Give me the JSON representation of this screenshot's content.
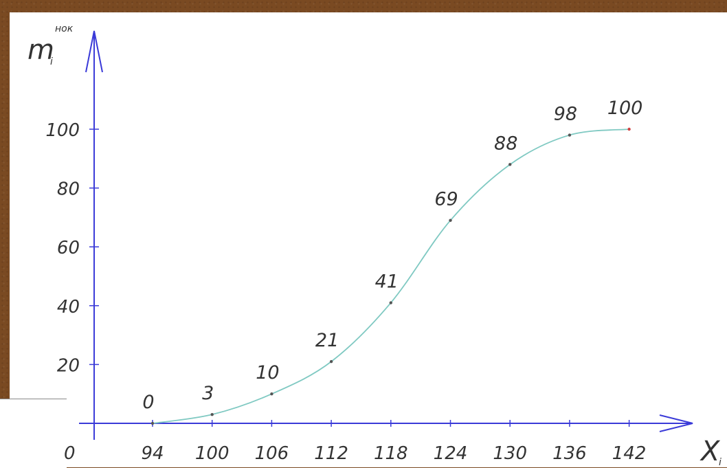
{
  "chart_data": {
    "type": "line",
    "title": "",
    "xlabel": "X",
    "xlabel_sub": "i",
    "ylabel": "m",
    "ylabel_sub": "i",
    "ylabel_sup": "нок",
    "origin_label": "0",
    "x": [
      94,
      100,
      106,
      112,
      118,
      124,
      130,
      136,
      142
    ],
    "x_tick_labels": [
      "94",
      "100",
      "106",
      "112",
      "118",
      "124",
      "130",
      "136",
      "142"
    ],
    "y": [
      0,
      3,
      10,
      21,
      41,
      69,
      88,
      98,
      100
    ],
    "point_labels": [
      "0",
      "3",
      "10",
      "21",
      "41",
      "69",
      "88",
      "98",
      "100"
    ],
    "y_tick_labels": [
      "20",
      "40",
      "60",
      "80",
      "100"
    ],
    "y_ticks": [
      20,
      40,
      60,
      80,
      100
    ],
    "ylim": [
      0,
      100
    ],
    "grid": false,
    "colors": {
      "line": "#7fc9c2",
      "axis": "#3a3ad8",
      "point": "#555555"
    }
  }
}
